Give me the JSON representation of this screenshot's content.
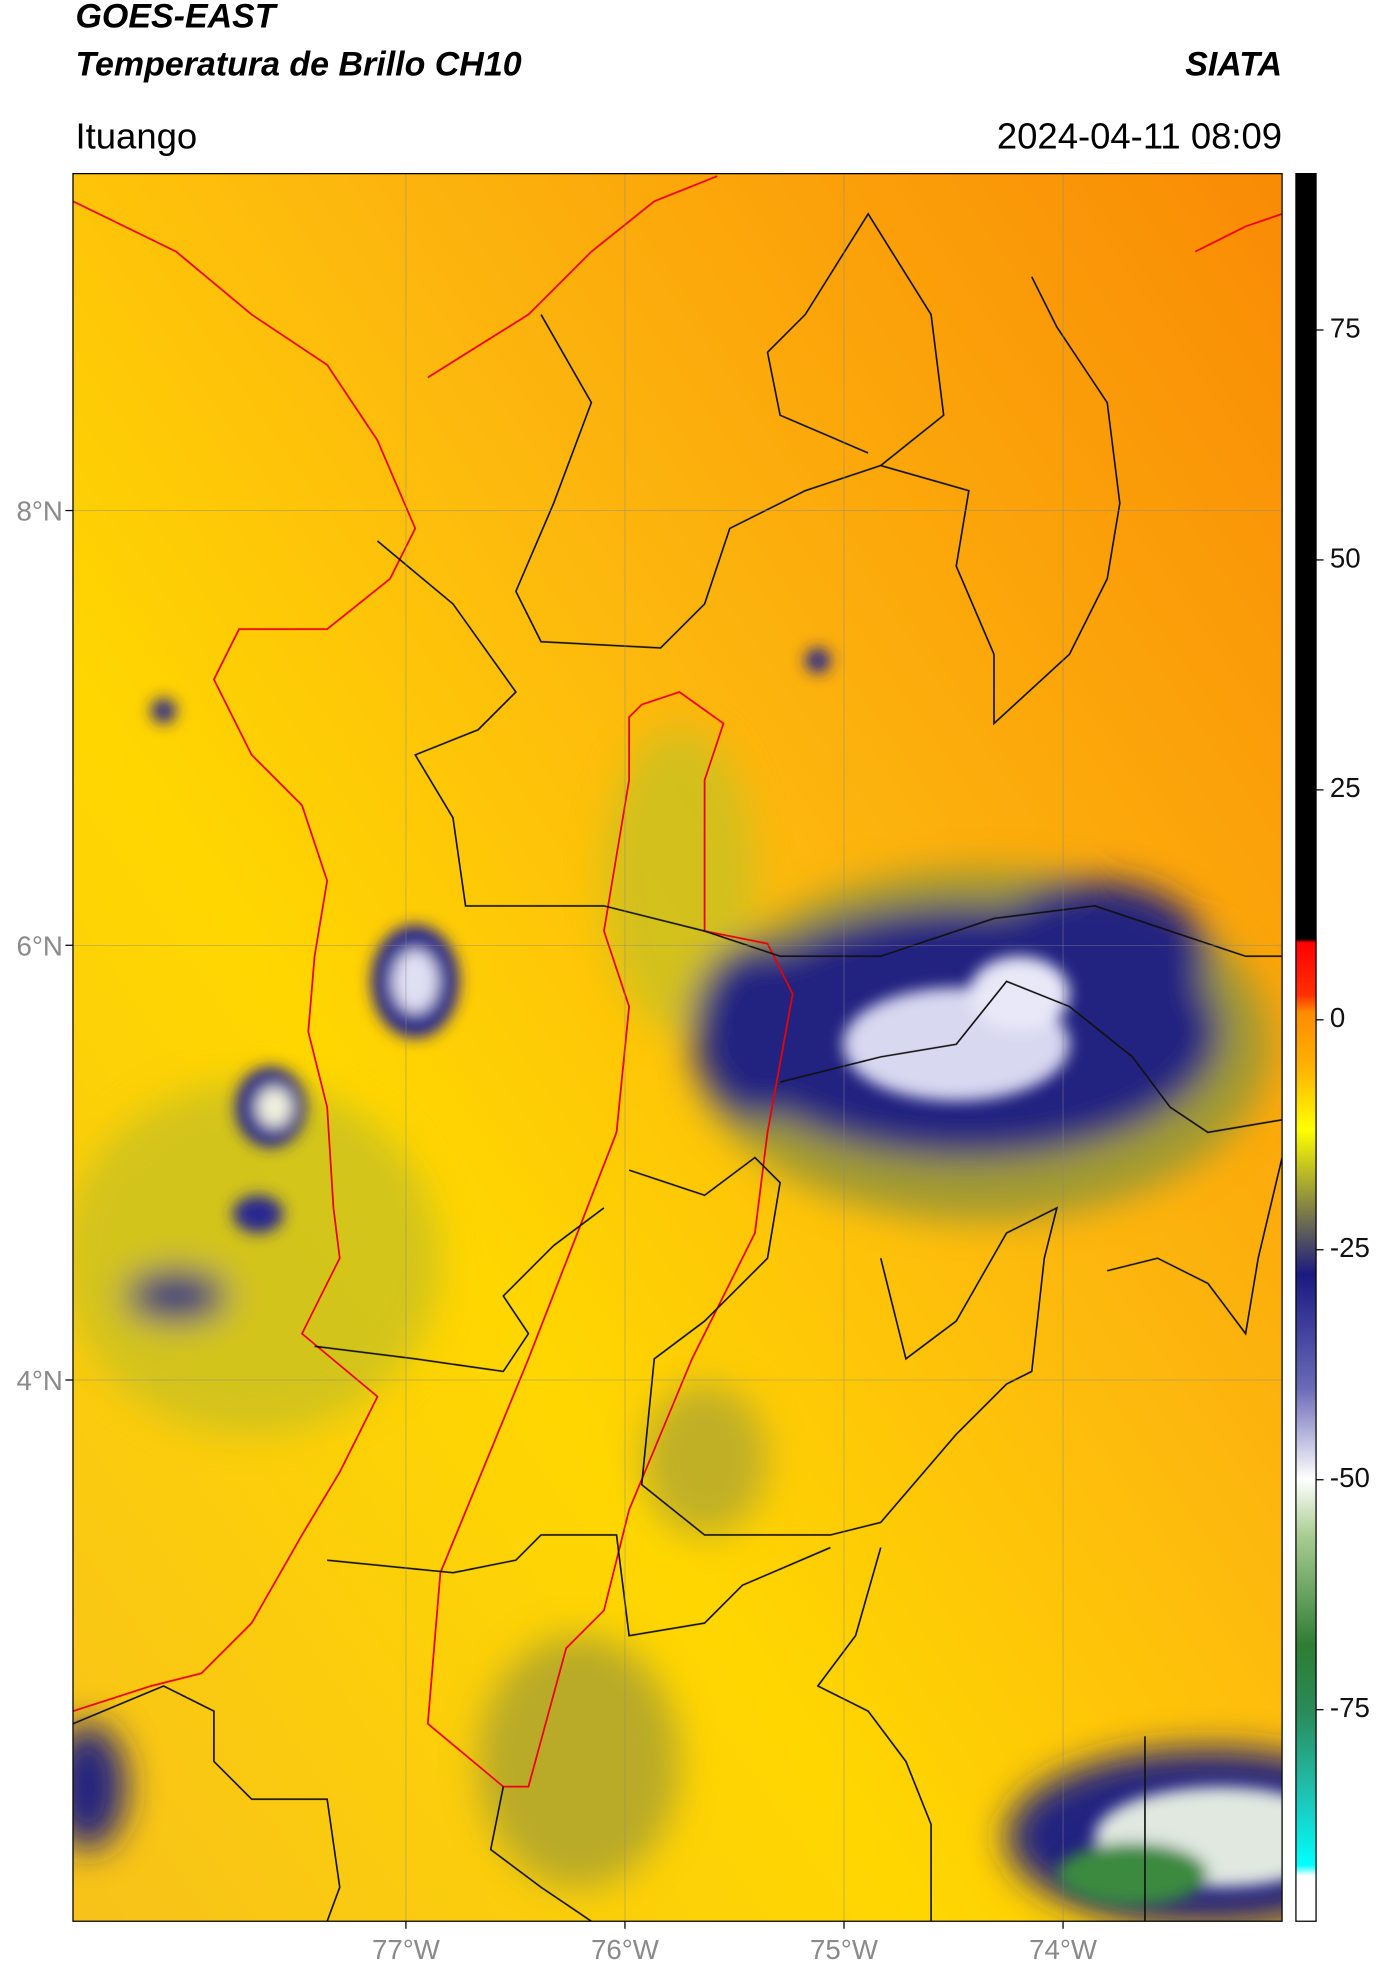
{
  "header": {
    "title": "GOES-EAST",
    "subtitle": "Temperatura de Brillo CH10",
    "source": "SIATA",
    "location": "Ituango",
    "timestamp": "2024-04-11 08:09"
  },
  "map": {
    "lon_range": [
      -78.52,
      -73.0
    ],
    "lat_range": [
      1.51,
      9.55
    ],
    "grid": true,
    "lon_ticks": [
      {
        "value": -77,
        "label": "77°W"
      },
      {
        "value": -76,
        "label": "76°W"
      },
      {
        "value": -75,
        "label": "75°W"
      },
      {
        "value": -74,
        "label": "74°W"
      }
    ],
    "lat_ticks": [
      {
        "value": 8,
        "label": "8°N"
      },
      {
        "value": 6,
        "label": "6°N"
      },
      {
        "value": 4,
        "label": "4°N"
      }
    ]
  },
  "colorbar": {
    "range": [
      -98,
      92
    ],
    "ticks": [
      75,
      50,
      25,
      0,
      -25,
      -50,
      -75
    ]
  }
}
